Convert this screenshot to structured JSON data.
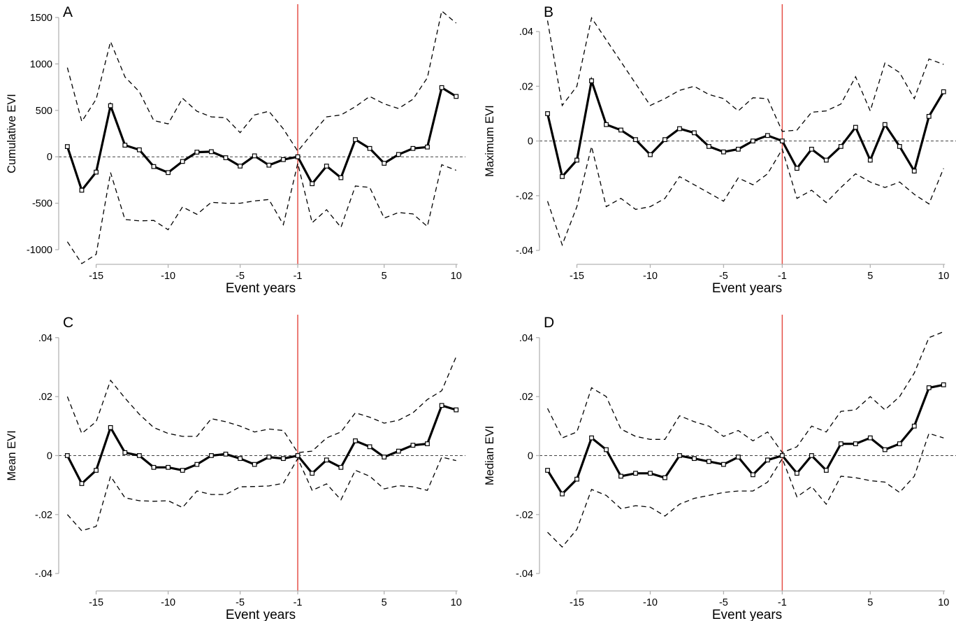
{
  "figure": {
    "background": "#ffffff"
  },
  "colors": {
    "line": "#000000",
    "ci": "#000000",
    "reference_line": "#e03127",
    "zero_line": "#404040",
    "axis": "#b3b3b3",
    "tick_label": "#000000",
    "marker_fill": "#ffffff"
  },
  "chart_data": [
    {
      "type": "line",
      "panel_label": "A",
      "xlabel": "Event years",
      "ylabel": "Cumulative EVI",
      "x": [
        -17,
        -16,
        -15,
        -14,
        -13,
        -12,
        -11,
        -10,
        -9,
        -8,
        -7,
        -6,
        -5,
        -4,
        -3,
        -2,
        -1,
        0,
        1,
        2,
        3,
        4,
        5,
        6,
        7,
        8,
        9,
        10
      ],
      "series": [
        {
          "name": "point estimate",
          "style": "solid",
          "marker": "square",
          "values": [
            110,
            -360,
            -165,
            550,
            125,
            75,
            -105,
            -170,
            -50,
            50,
            55,
            -10,
            -100,
            10,
            -90,
            -30,
            0,
            -290,
            -100,
            -225,
            185,
            90,
            -70,
            25,
            90,
            105,
            745,
            650
          ]
        },
        {
          "name": "upper 95% CI",
          "style": "dashed",
          "marker": "none",
          "values": [
            960,
            380,
            620,
            1240,
            860,
            700,
            390,
            355,
            630,
            490,
            430,
            420,
            260,
            450,
            490,
            300,
            60,
            250,
            430,
            450,
            540,
            650,
            570,
            520,
            620,
            850,
            1570,
            1440
          ]
        },
        {
          "name": "lower 95% CI",
          "style": "dashed",
          "marker": "none",
          "values": [
            -915,
            -1150,
            -1050,
            -170,
            -675,
            -690,
            -685,
            -785,
            -540,
            -620,
            -490,
            -500,
            -500,
            -475,
            -460,
            -730,
            -70,
            -710,
            -570,
            -760,
            -315,
            -330,
            -660,
            -600,
            -615,
            -750,
            -85,
            -145
          ]
        }
      ],
      "xticks": {
        "values": [
          -15,
          -10,
          -5,
          -1,
          5,
          10
        ],
        "labels": [
          "-15",
          "-10",
          "-5",
          "-1",
          "5",
          "10"
        ]
      },
      "yticks": {
        "values": [
          1500,
          1000,
          500,
          0,
          -500,
          -1000
        ],
        "labels": [
          "1500",
          "1000",
          "500",
          "0",
          "-500",
          "-1000"
        ]
      },
      "xlim": [
        -17.6,
        10.45
      ],
      "ylim": [
        -1158,
        1628
      ],
      "reference_lines": {
        "vline_x": -1,
        "hline_y": 0
      },
      "legend": "none",
      "grid": false
    },
    {
      "type": "line",
      "panel_label": "B",
      "xlabel": "Event years",
      "ylabel": "Maximum EVI",
      "x": [
        -17,
        -16,
        -15,
        -14,
        -13,
        -12,
        -11,
        -10,
        -9,
        -8,
        -7,
        -6,
        -5,
        -4,
        -3,
        -2,
        -1,
        0,
        1,
        2,
        3,
        4,
        5,
        6,
        7,
        8,
        9,
        10
      ],
      "series": [
        {
          "name": "point estimate",
          "style": "solid",
          "marker": "square",
          "values": [
            0.01,
            -0.013,
            -0.007,
            0.022,
            0.006,
            0.004,
            0.0005,
            -0.005,
            0.0005,
            0.0045,
            0.003,
            -0.002,
            -0.004,
            -0.003,
            0,
            0.002,
            0,
            -0.01,
            -0.003,
            -0.007,
            -0.002,
            0.005,
            -0.007,
            0.006,
            -0.002,
            -0.011,
            0.009,
            0.018
          ]
        },
        {
          "name": "upper 95% CI",
          "style": "dashed",
          "marker": "none",
          "values": [
            0.044,
            0.013,
            0.02,
            0.045,
            0.037,
            0.029,
            0.021,
            0.013,
            0.0155,
            0.0185,
            0.02,
            0.017,
            0.0155,
            0.011,
            0.0158,
            0.0155,
            0.0035,
            0.004,
            0.0105,
            0.011,
            0.0135,
            0.0235,
            0.011,
            0.0285,
            0.025,
            0.0155,
            0.03,
            0.028
          ]
        },
        {
          "name": "lower 95% CI",
          "style": "dashed",
          "marker": "none",
          "values": [
            -0.022,
            -0.038,
            -0.024,
            -0.002,
            -0.024,
            -0.021,
            -0.025,
            -0.024,
            -0.021,
            -0.013,
            -0.016,
            -0.019,
            -0.022,
            -0.0135,
            -0.016,
            -0.012,
            -0.003,
            -0.021,
            -0.018,
            -0.0225,
            -0.017,
            -0.012,
            -0.015,
            -0.017,
            -0.015,
            -0.0195,
            -0.023,
            -0.01
          ]
        }
      ],
      "xticks": {
        "values": [
          -15,
          -10,
          -5,
          -1,
          5,
          10
        ],
        "labels": [
          "-15",
          "-10",
          "-5",
          "-1",
          "5",
          "10"
        ]
      },
      "yticks": {
        "values": [
          0.04,
          0.02,
          0,
          -0.02,
          -0.04
        ],
        "labels": [
          ".04",
          ".02",
          "0",
          "-.02",
          "-.04"
        ]
      },
      "xlim": [
        -17.55,
        10.75
      ],
      "ylim": [
        -0.0451,
        0.0495
      ],
      "reference_lines": {
        "vline_x": -1,
        "hline_y": 0
      },
      "legend": "none",
      "grid": false
    },
    {
      "type": "line",
      "panel_label": "C",
      "xlabel": "Event years",
      "ylabel": "Mean EVI",
      "x": [
        -17,
        -16,
        -15,
        -14,
        -13,
        -12,
        -11,
        -10,
        -9,
        -8,
        -7,
        -6,
        -5,
        -4,
        -3,
        -2,
        -1,
        0,
        1,
        2,
        3,
        4,
        5,
        6,
        7,
        8,
        9,
        10
      ],
      "series": [
        {
          "name": "point estimate",
          "style": "solid",
          "marker": "square",
          "values": [
            0,
            -0.0095,
            -0.005,
            0.0095,
            0.001,
            0,
            -0.004,
            -0.004,
            -0.005,
            -0.003,
            0,
            0.0005,
            -0.001,
            -0.003,
            -0.0005,
            -0.001,
            0,
            -0.006,
            -0.0015,
            -0.004,
            0.005,
            0.003,
            -0.0005,
            0.0015,
            0.0035,
            0.004,
            0.017,
            0.0155
          ]
        },
        {
          "name": "upper 95% CI",
          "style": "dashed",
          "marker": "none",
          "values": [
            0.02,
            0.0075,
            0.0115,
            0.0255,
            0.0195,
            0.014,
            0.0095,
            0.0075,
            0.0065,
            0.0065,
            0.0125,
            0.0115,
            0.01,
            0.008,
            0.009,
            0.0085,
            0.001,
            0.0015,
            0.006,
            0.008,
            0.0145,
            0.013,
            0.011,
            0.012,
            0.0145,
            0.019,
            0.022,
            0.0335
          ]
        },
        {
          "name": "lower 95% CI",
          "style": "dashed",
          "marker": "none",
          "values": [
            -0.02,
            -0.0255,
            -0.024,
            -0.007,
            -0.0143,
            -0.0153,
            -0.0155,
            -0.0153,
            -0.0176,
            -0.012,
            -0.0132,
            -0.0132,
            -0.0106,
            -0.0105,
            -0.0103,
            -0.0094,
            -0.001,
            -0.0118,
            -0.0096,
            -0.015,
            -0.005,
            -0.007,
            -0.0113,
            -0.0102,
            -0.0106,
            -0.0118,
            -0.0005,
            -0.0017
          ]
        }
      ],
      "xticks": {
        "values": [
          -15,
          -10,
          -5,
          -1,
          5,
          10
        ],
        "labels": [
          "-15",
          "-10",
          "-5",
          "-1",
          "5",
          "10"
        ]
      },
      "yticks": {
        "values": [
          0.04,
          0.02,
          0,
          -0.02,
          -0.04
        ],
        "labels": [
          ".04",
          ".02",
          "0",
          "-.02",
          "-.04"
        ]
      },
      "xlim": [
        -17.6,
        10.45
      ],
      "ylim": [
        -0.0459,
        0.0473
      ],
      "reference_lines": {
        "vline_x": -1,
        "hline_y": 0
      },
      "legend": "none",
      "grid": false
    },
    {
      "type": "line",
      "panel_label": "D",
      "xlabel": "Event years",
      "ylabel": "Median EVI",
      "x": [
        -17,
        -16,
        -15,
        -14,
        -13,
        -12,
        -11,
        -10,
        -9,
        -8,
        -7,
        -6,
        -5,
        -4,
        -3,
        -2,
        -1,
        0,
        1,
        2,
        3,
        4,
        5,
        6,
        7,
        8,
        9,
        10
      ],
      "series": [
        {
          "name": "point estimate",
          "style": "solid",
          "marker": "square",
          "values": [
            -0.005,
            -0.013,
            -0.008,
            0.006,
            0.002,
            -0.007,
            -0.006,
            -0.006,
            -0.0075,
            0,
            -0.001,
            -0.002,
            -0.003,
            -0.0005,
            -0.0065,
            -0.0015,
            0,
            -0.006,
            0,
            -0.005,
            0.004,
            0.004,
            0.006,
            0.002,
            0.004,
            0.01,
            0.023,
            0.024
          ]
        },
        {
          "name": "upper 95% CI",
          "style": "dashed",
          "marker": "none",
          "values": [
            0.016,
            0.006,
            0.008,
            0.023,
            0.02,
            0.009,
            0.0065,
            0.0055,
            0.0055,
            0.0135,
            0.0115,
            0.01,
            0.0065,
            0.0085,
            0.005,
            0.008,
            0.001,
            0.003,
            0.01,
            0.008,
            0.015,
            0.0155,
            0.02,
            0.0155,
            0.02,
            0.028,
            0.04,
            0.042
          ]
        },
        {
          "name": "lower 95% CI",
          "style": "dashed",
          "marker": "none",
          "values": [
            -0.026,
            -0.031,
            -0.025,
            -0.0115,
            -0.0135,
            -0.018,
            -0.017,
            -0.0175,
            -0.0205,
            -0.0165,
            -0.0145,
            -0.0135,
            -0.0125,
            -0.012,
            -0.012,
            -0.009,
            -0.001,
            -0.014,
            -0.0105,
            -0.0165,
            -0.007,
            -0.0075,
            -0.0085,
            -0.009,
            -0.0125,
            -0.007,
            0.0075,
            0.006
          ]
        }
      ],
      "xticks": {
        "values": [
          -15,
          -10,
          -5,
          -1,
          5,
          10
        ],
        "labels": [
          "-15",
          "-10",
          "-5",
          "-1",
          "5",
          "10"
        ]
      },
      "yticks": {
        "values": [
          0.04,
          0.02,
          0,
          -0.02,
          -0.04
        ],
        "labels": [
          ".04",
          ".02",
          "0",
          "-.02",
          "-.04"
        ]
      },
      "xlim": [
        -17.55,
        10.75
      ],
      "ylim": [
        -0.0459,
        0.0473
      ],
      "reference_lines": {
        "vline_x": -1,
        "hline_y": 0
      },
      "legend": "none",
      "grid": false
    }
  ]
}
